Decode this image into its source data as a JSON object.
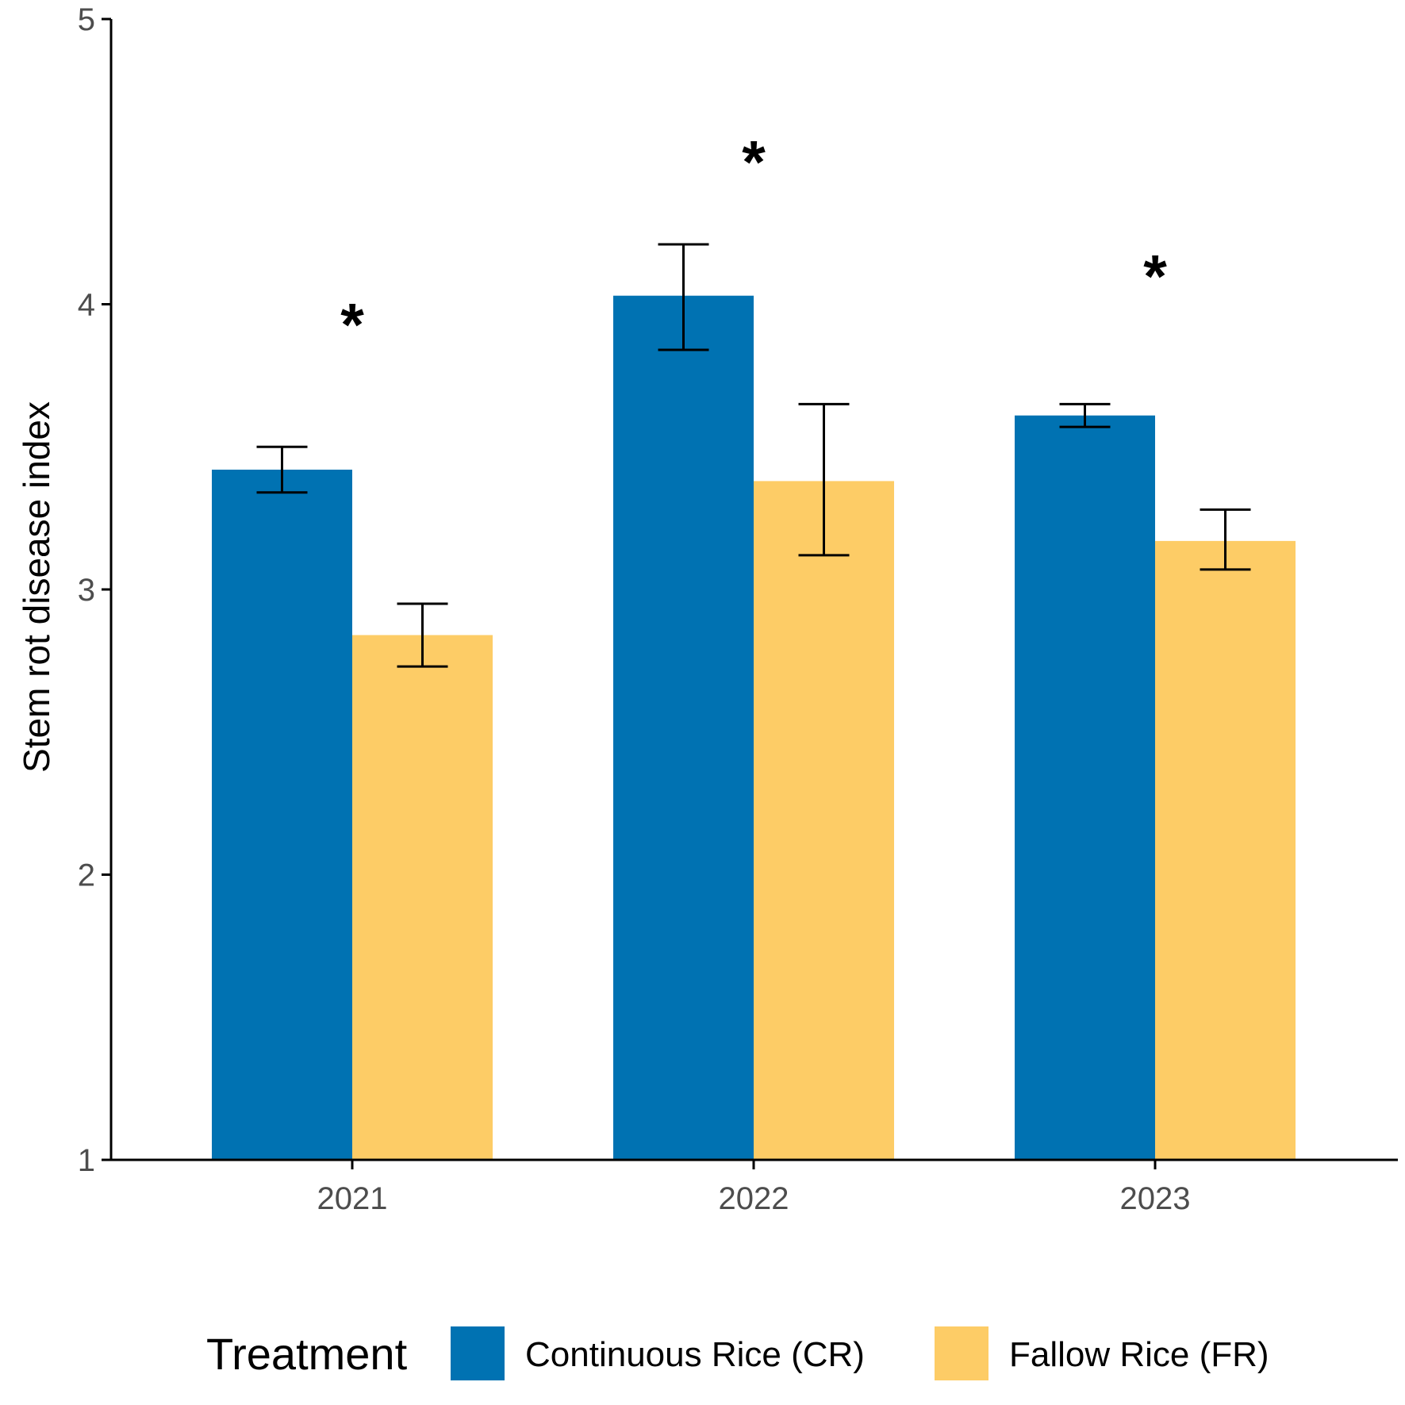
{
  "chart_data": {
    "type": "bar",
    "categories": [
      "2021",
      "2022",
      "2023"
    ],
    "series": [
      {
        "name": "Continuous Rice (CR)",
        "color": "#0072b2",
        "values": [
          3.42,
          4.03,
          3.61
        ],
        "error_low": [
          3.34,
          3.84,
          3.57
        ],
        "error_high": [
          3.5,
          4.21,
          3.65
        ]
      },
      {
        "name": "Fallow Rice (FR)",
        "color": "#fdcc66",
        "values": [
          2.84,
          3.38,
          3.17
        ],
        "error_low": [
          2.73,
          3.12,
          3.07
        ],
        "error_high": [
          2.95,
          3.65,
          3.28
        ]
      }
    ],
    "annotations": [
      {
        "category": "2021",
        "text": "*",
        "y": 4.0
      },
      {
        "category": "2022",
        "text": "*",
        "y": 4.57
      },
      {
        "category": "2023",
        "text": "*",
        "y": 4.17
      }
    ],
    "xlabel": "",
    "ylabel": "Stem rot disease index",
    "ylim": [
      1,
      5
    ],
    "yticks": [
      1,
      2,
      3,
      4,
      5
    ],
    "grid": false,
    "legend": {
      "title": "Treatment",
      "placement": "bottom"
    }
  }
}
